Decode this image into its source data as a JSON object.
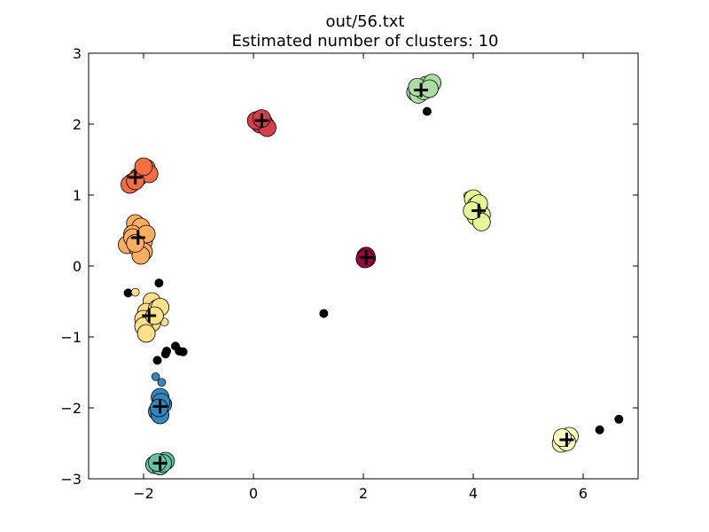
{
  "window": {
    "title": "out/56.txt"
  },
  "chart_data": {
    "type": "scatter",
    "title": "out/56.txt",
    "subtitle": "Estimated number of clusters: 10",
    "xlabel": "",
    "ylabel": "",
    "xlim": [
      -3,
      7
    ],
    "ylim": [
      -3,
      3
    ],
    "xticks": [
      -2,
      0,
      2,
      4,
      6
    ],
    "yticks": [
      -3,
      -2,
      -1,
      0,
      1,
      2,
      3
    ],
    "xtick_labels": [
      "−2",
      "0",
      "2",
      "4",
      "6"
    ],
    "ytick_labels": [
      "−3",
      "−2",
      "−1",
      "0",
      "1",
      "2",
      "3"
    ],
    "grid": false,
    "legend": "none",
    "clusters": [
      {
        "color": "#9e0142",
        "center": [
          2.05,
          0.12
        ],
        "core": [
          [
            2.04,
            0.13
          ],
          [
            2.06,
            0.11
          ],
          [
            2.05,
            0.14
          ],
          [
            2.03,
            0.1
          ]
        ],
        "border": []
      },
      {
        "color": "#d53e4f",
        "center": [
          0.15,
          2.05
        ],
        "core": [
          [
            0.1,
            2.06
          ],
          [
            0.18,
            2.03
          ],
          [
            0.22,
            1.98
          ],
          [
            0.12,
            2.0
          ],
          [
            0.25,
            1.95
          ],
          [
            0.05,
            2.05
          ],
          [
            0.15,
            2.08
          ]
        ],
        "border": []
      },
      {
        "color": "#f46d43",
        "center": [
          -2.15,
          1.25
        ],
        "core": [
          [
            -2.2,
            1.18
          ],
          [
            -2.1,
            1.25
          ],
          [
            -2.0,
            1.32
          ],
          [
            -1.95,
            1.38
          ],
          [
            -2.25,
            1.15
          ],
          [
            -2.05,
            1.28
          ],
          [
            -1.9,
            1.3
          ],
          [
            -2.15,
            1.2
          ],
          [
            -2.0,
            1.4
          ]
        ],
        "border": []
      },
      {
        "color": "#fdae61",
        "center": [
          -2.1,
          0.4
        ],
        "core": [
          [
            -2.15,
            0.6
          ],
          [
            -2.05,
            0.55
          ],
          [
            -2.2,
            0.45
          ],
          [
            -2.0,
            0.35
          ],
          [
            -2.3,
            0.3
          ],
          [
            -2.1,
            0.25
          ],
          [
            -2.0,
            0.2
          ],
          [
            -2.2,
            0.4
          ],
          [
            -1.95,
            0.45
          ],
          [
            -2.05,
            0.15
          ],
          [
            -2.15,
            0.32
          ]
        ],
        "border": [
          [
            -2.0,
            0.6
          ]
        ]
      },
      {
        "color": "#fee08b",
        "center": [
          -1.9,
          -0.7
        ],
        "core": [
          [
            -1.85,
            -0.5
          ],
          [
            -1.95,
            -0.65
          ],
          [
            -2.0,
            -0.75
          ],
          [
            -1.75,
            -0.6
          ],
          [
            -1.85,
            -0.8
          ],
          [
            -2.0,
            -0.85
          ],
          [
            -1.95,
            -0.95
          ],
          [
            -1.7,
            -0.58
          ],
          [
            -1.8,
            -0.7
          ]
        ],
        "border": [
          [
            -2.15,
            -0.37
          ],
          [
            -1.62,
            -0.79
          ]
        ]
      },
      {
        "color": "#ffffbf",
        "center": [
          5.7,
          -2.45
        ],
        "core": [
          [
            5.75,
            -2.4
          ],
          [
            5.65,
            -2.45
          ],
          [
            5.6,
            -2.5
          ],
          [
            5.7,
            -2.48
          ],
          [
            5.62,
            -2.42
          ]
        ],
        "border": []
      },
      {
        "color": "#e6f598",
        "center": [
          4.1,
          0.78
        ],
        "core": [
          [
            4.0,
            0.95
          ],
          [
            4.05,
            0.85
          ],
          [
            4.1,
            0.8
          ],
          [
            4.15,
            0.72
          ],
          [
            4.05,
            0.7
          ],
          [
            4.15,
            0.62
          ],
          [
            4.1,
            0.88
          ],
          [
            3.98,
            0.78
          ]
        ],
        "border": [
          [
            3.9,
            0.99
          ]
        ]
      },
      {
        "color": "#abdda4",
        "center": [
          3.05,
          2.48
        ],
        "core": [
          [
            2.95,
            2.45
          ],
          [
            3.05,
            2.5
          ],
          [
            3.15,
            2.55
          ],
          [
            3.25,
            2.58
          ],
          [
            3.0,
            2.42
          ],
          [
            3.1,
            2.47
          ],
          [
            2.98,
            2.52
          ],
          [
            3.2,
            2.5
          ]
        ],
        "border": []
      },
      {
        "color": "#66c2a5",
        "center": [
          -1.7,
          -2.78
        ],
        "core": [
          [
            -1.8,
            -2.8
          ],
          [
            -1.6,
            -2.75
          ],
          [
            -1.7,
            -2.82
          ],
          [
            -1.65,
            -2.78
          ],
          [
            -1.75,
            -2.77
          ]
        ],
        "border": []
      },
      {
        "color": "#3288bd",
        "center": [
          -1.7,
          -1.98
        ],
        "core": [
          [
            -1.7,
            -1.85
          ],
          [
            -1.65,
            -1.95
          ],
          [
            -1.75,
            -2.05
          ],
          [
            -1.7,
            -2.1
          ],
          [
            -1.68,
            -1.92
          ],
          [
            -1.72,
            -2.0
          ]
        ],
        "border": [
          [
            -1.78,
            -1.56
          ],
          [
            -1.67,
            -1.64
          ]
        ]
      }
    ],
    "noise": [
      [
        -2.28,
        -0.38
      ],
      [
        -1.72,
        -0.24
      ],
      [
        -1.75,
        -1.33
      ],
      [
        -1.6,
        -1.24
      ],
      [
        -1.58,
        -1.2
      ],
      [
        -1.42,
        -1.13
      ],
      [
        -1.35,
        -1.2
      ],
      [
        -1.28,
        -1.21
      ],
      [
        1.28,
        -0.67
      ],
      [
        3.16,
        2.18
      ],
      [
        6.3,
        -2.31
      ],
      [
        6.65,
        -2.16
      ]
    ]
  }
}
